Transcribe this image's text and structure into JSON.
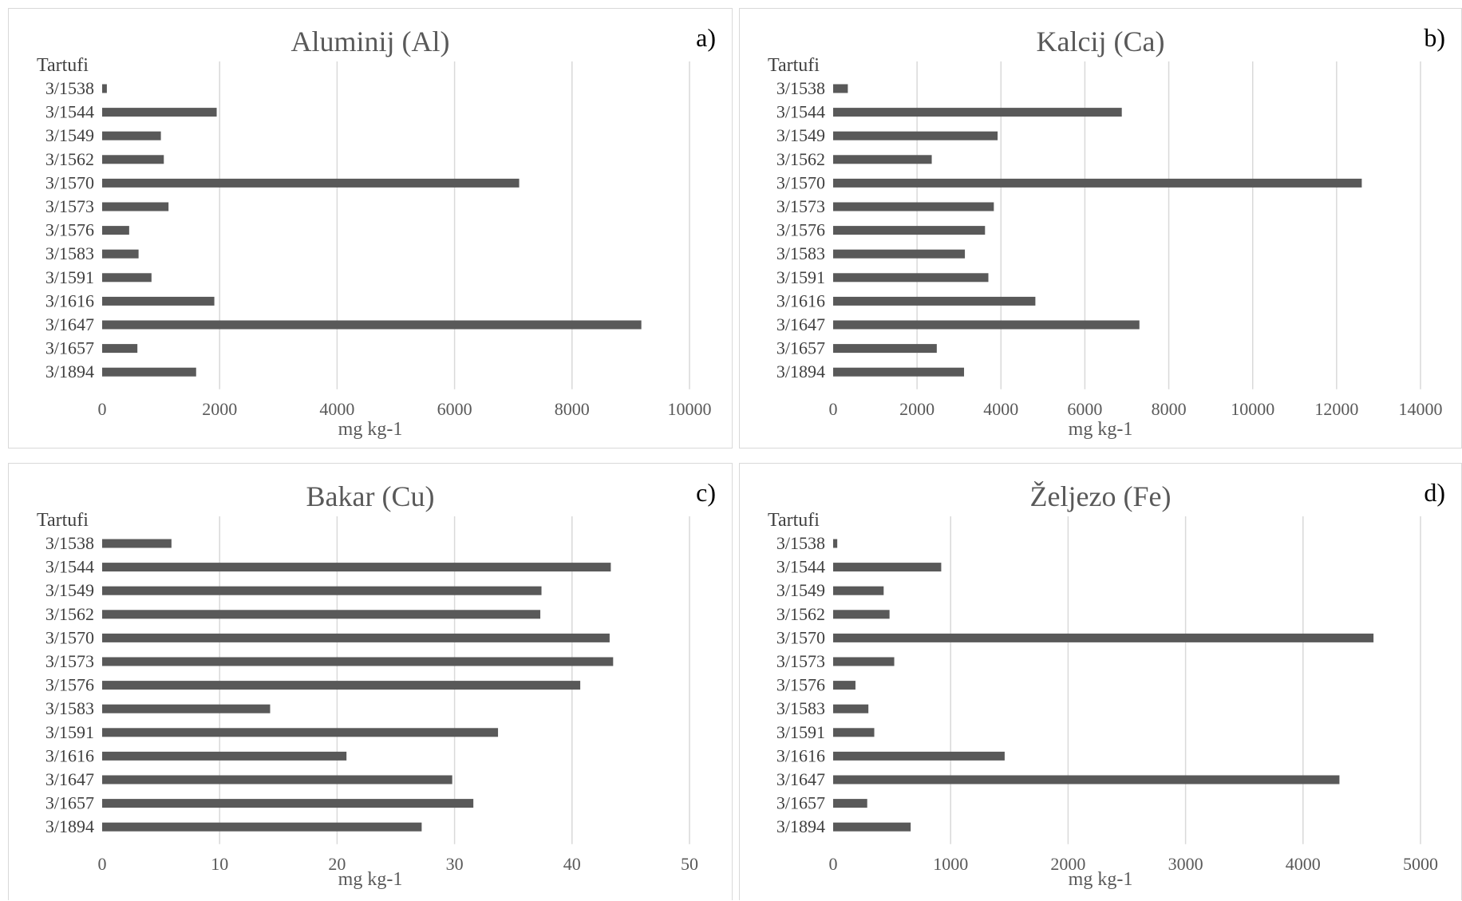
{
  "chart_data": [
    {
      "type": "bar",
      "orientation": "horizontal",
      "title": "Aluminij (Al)",
      "panel_letter": "a)",
      "category_axis_title": "Tartufi",
      "xlabel": "mg kg-1",
      "categories": [
        "3/1538",
        "3/1544",
        "3/1549",
        "3/1562",
        "3/1570",
        "3/1573",
        "3/1576",
        "3/1583",
        "3/1591",
        "3/1616",
        "3/1647",
        "3/1657",
        "3/1894"
      ],
      "values": [
        80,
        1950,
        1000,
        1050,
        7100,
        1130,
        460,
        620,
        840,
        1910,
        9180,
        600,
        1600
      ],
      "xlim": [
        0,
        10000
      ],
      "ticks": [
        0,
        2000,
        4000,
        6000,
        8000,
        10000
      ],
      "grid": "vertical",
      "bar_color": "#595959"
    },
    {
      "type": "bar",
      "orientation": "horizontal",
      "title": "Kalcij (Ca)",
      "panel_letter": "b)",
      "category_axis_title": "Tartufi",
      "xlabel": "mg kg-1",
      "categories": [
        "3/1538",
        "3/1544",
        "3/1549",
        "3/1562",
        "3/1570",
        "3/1573",
        "3/1576",
        "3/1583",
        "3/1591",
        "3/1616",
        "3/1647",
        "3/1657",
        "3/1894"
      ],
      "values": [
        350,
        6880,
        3920,
        2350,
        12600,
        3830,
        3620,
        3140,
        3700,
        4820,
        7300,
        2470,
        3120
      ],
      "xlim": [
        0,
        14000
      ],
      "ticks": [
        0,
        2000,
        4000,
        6000,
        8000,
        10000,
        12000,
        14000
      ],
      "grid": "vertical",
      "bar_color": "#595959"
    },
    {
      "type": "bar",
      "orientation": "horizontal",
      "title": "Bakar (Cu)",
      "panel_letter": "c)",
      "category_axis_title": "Tartufi",
      "xlabel": "mg kg-1",
      "categories": [
        "3/1538",
        "3/1544",
        "3/1549",
        "3/1562",
        "3/1570",
        "3/1573",
        "3/1576",
        "3/1583",
        "3/1591",
        "3/1616",
        "3/1647",
        "3/1657",
        "3/1894"
      ],
      "values": [
        5.9,
        43.3,
        37.4,
        37.3,
        43.2,
        43.5,
        40.7,
        14.3,
        33.7,
        20.8,
        29.8,
        31.6,
        27.2
      ],
      "xlim": [
        0,
        50
      ],
      "ticks": [
        0,
        10,
        20,
        30,
        40,
        50
      ],
      "grid": "vertical",
      "bar_color": "#595959"
    },
    {
      "type": "bar",
      "orientation": "horizontal",
      "title": "Željezo (Fe)",
      "panel_letter": "d)",
      "category_axis_title": "Tartufi",
      "xlabel": "mg kg-1",
      "categories": [
        "3/1538",
        "3/1544",
        "3/1549",
        "3/1562",
        "3/1570",
        "3/1573",
        "3/1576",
        "3/1583",
        "3/1591",
        "3/1616",
        "3/1647",
        "3/1657",
        "3/1894"
      ],
      "values": [
        35,
        920,
        430,
        480,
        4600,
        520,
        190,
        300,
        350,
        1460,
        4310,
        290,
        660
      ],
      "xlim": [
        0,
        5000
      ],
      "ticks": [
        0,
        1000,
        2000,
        3000,
        4000,
        5000
      ],
      "grid": "vertical",
      "bar_color": "#595959"
    }
  ]
}
